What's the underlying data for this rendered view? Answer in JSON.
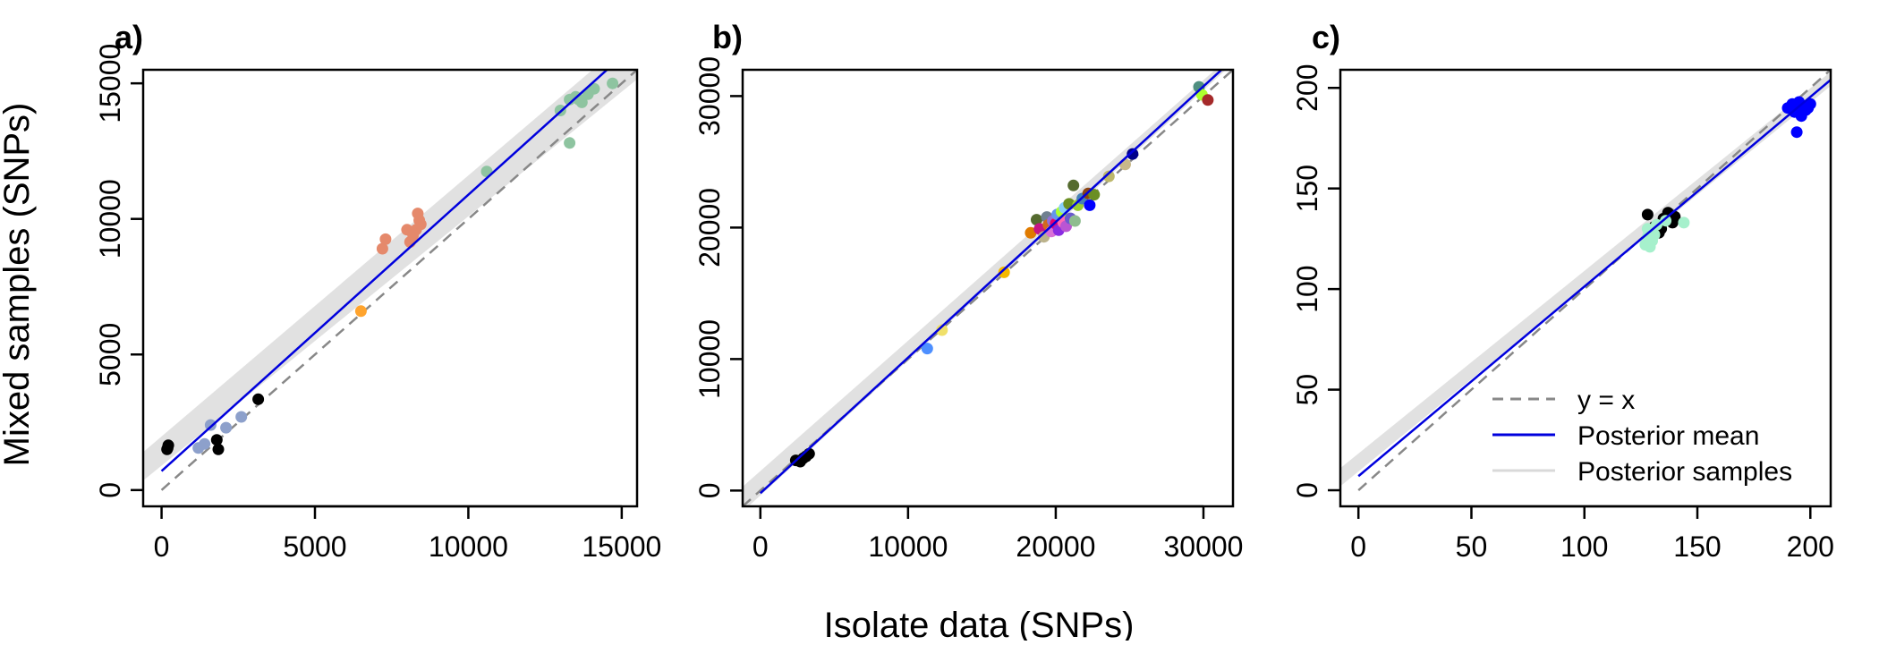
{
  "figure": {
    "ylabel": "Mixed samples (SNPs)",
    "xlabel": "Isolate data (SNPs)"
  },
  "legend": {
    "placement": "bottom-right of panel c",
    "entries": [
      {
        "label": "y = x",
        "style": "dashed",
        "color": "#888888"
      },
      {
        "label": "Posterior mean",
        "style": "solid",
        "color": "#0000dd"
      },
      {
        "label": "Posterior samples",
        "style": "solid",
        "color": "#d9d9d9"
      }
    ]
  },
  "chart_data": [
    {
      "type": "scatter",
      "panel": "a)",
      "xlim": [
        -600,
        15500
      ],
      "ylim": [
        -600,
        15500
      ],
      "xticks": [
        0,
        5000,
        10000,
        15000
      ],
      "yticks": [
        0,
        5000,
        10000,
        15000
      ],
      "grid": false,
      "identity_line": [
        [
          0,
          0
        ],
        [
          15500,
          15500
        ]
      ],
      "posterior_mean": [
        [
          0,
          700
        ],
        [
          15500,
          16500
        ]
      ],
      "posterior_band": {
        "at_min": [
          350,
          1400
        ],
        "at_max": [
          15150,
          16900
        ]
      },
      "points": [
        {
          "x": 200,
          "y": 1550,
          "c": "#000000"
        },
        {
          "x": 220,
          "y": 1650,
          "c": "#000000"
        },
        {
          "x": 180,
          "y": 1500,
          "c": "#000000"
        },
        {
          "x": 1800,
          "y": 1850,
          "c": "#000000"
        },
        {
          "x": 1850,
          "y": 1500,
          "c": "#000000"
        },
        {
          "x": 3150,
          "y": 3350,
          "c": "#000000"
        },
        {
          "x": 1200,
          "y": 1550,
          "c": "#8da0cb"
        },
        {
          "x": 1400,
          "y": 1700,
          "c": "#8da0cb"
        },
        {
          "x": 1600,
          "y": 2400,
          "c": "#8da0cb"
        },
        {
          "x": 2100,
          "y": 2300,
          "c": "#8da0cb"
        },
        {
          "x": 2600,
          "y": 2700,
          "c": "#8da0cb"
        },
        {
          "x": 6500,
          "y": 6600,
          "c": "#ffa42e"
        },
        {
          "x": 7200,
          "y": 8900,
          "c": "#e5896b"
        },
        {
          "x": 7300,
          "y": 9250,
          "c": "#e5896b"
        },
        {
          "x": 8000,
          "y": 9600,
          "c": "#e5896b"
        },
        {
          "x": 8100,
          "y": 9150,
          "c": "#e5896b"
        },
        {
          "x": 8300,
          "y": 9600,
          "c": "#e5896b"
        },
        {
          "x": 8350,
          "y": 10200,
          "c": "#e5896b"
        },
        {
          "x": 8400,
          "y": 9950,
          "c": "#e5896b"
        },
        {
          "x": 8450,
          "y": 9800,
          "c": "#e5896b"
        },
        {
          "x": 8200,
          "y": 9400,
          "c": "#e5896b"
        },
        {
          "x": 10600,
          "y": 11750,
          "c": "#8ec4a0"
        },
        {
          "x": 13000,
          "y": 14000,
          "c": "#8ec4a0"
        },
        {
          "x": 13300,
          "y": 14400,
          "c": "#8ec4a0"
        },
        {
          "x": 13300,
          "y": 12800,
          "c": "#8ec4a0"
        },
        {
          "x": 13500,
          "y": 14500,
          "c": "#8ec4a0"
        },
        {
          "x": 13700,
          "y": 14300,
          "c": "#8ec4a0"
        },
        {
          "x": 13900,
          "y": 14600,
          "c": "#8ec4a0"
        },
        {
          "x": 14100,
          "y": 14800,
          "c": "#8ec4a0"
        },
        {
          "x": 14700,
          "y": 15000,
          "c": "#8ec4a0"
        },
        {
          "x": 13600,
          "y": 14400,
          "c": "#8ec4a0"
        }
      ]
    },
    {
      "type": "scatter",
      "panel": "b)",
      "xlim": [
        -1200,
        32000
      ],
      "ylim": [
        -1200,
        32000
      ],
      "xticks": [
        0,
        10000,
        20000,
        30000
      ],
      "yticks": [
        0,
        10000,
        20000,
        30000
      ],
      "grid": false,
      "identity_line": [
        [
          -1200,
          -1200
        ],
        [
          32000,
          32000
        ]
      ],
      "posterior_mean": [
        [
          0,
          -200
        ],
        [
          32000,
          32800
        ]
      ],
      "posterior_band": {
        "at_min": [
          -1600,
          300
        ],
        "at_max": [
          32500,
          33200
        ]
      },
      "points": [
        {
          "x": 2400,
          "y": 2300,
          "c": "#000000"
        },
        {
          "x": 2700,
          "y": 2200,
          "c": "#000000"
        },
        {
          "x": 3100,
          "y": 2600,
          "c": "#000000"
        },
        {
          "x": 3300,
          "y": 2800,
          "c": "#000000"
        },
        {
          "x": 2900,
          "y": 2450,
          "c": "#000000"
        },
        {
          "x": 11300,
          "y": 10800,
          "c": "#4d8fff"
        },
        {
          "x": 12300,
          "y": 12200,
          "c": "#f0e06a"
        },
        {
          "x": 16500,
          "y": 16600,
          "c": "#f5b800"
        },
        {
          "x": 18300,
          "y": 19600,
          "c": "#e07b00"
        },
        {
          "x": 18700,
          "y": 20600,
          "c": "#556b2f"
        },
        {
          "x": 18900,
          "y": 19900,
          "c": "#c71585"
        },
        {
          "x": 19200,
          "y": 19300,
          "c": "#bcb38c"
        },
        {
          "x": 19400,
          "y": 20800,
          "c": "#708090"
        },
        {
          "x": 19500,
          "y": 20200,
          "c": "#d2691e"
        },
        {
          "x": 19700,
          "y": 19700,
          "c": "#da70d6"
        },
        {
          "x": 19800,
          "y": 20500,
          "c": "#9370db"
        },
        {
          "x": 20000,
          "y": 20300,
          "c": "#e60073"
        },
        {
          "x": 20100,
          "y": 21000,
          "c": "#6495ed"
        },
        {
          "x": 20200,
          "y": 19800,
          "c": "#8a2be2"
        },
        {
          "x": 20400,
          "y": 21200,
          "c": "#adff2f"
        },
        {
          "x": 20500,
          "y": 20400,
          "c": "#ff69b4"
        },
        {
          "x": 20600,
          "y": 21500,
          "c": "#87cefa"
        },
        {
          "x": 20700,
          "y": 20100,
          "c": "#ba55d3"
        },
        {
          "x": 20900,
          "y": 21800,
          "c": "#6b8e23"
        },
        {
          "x": 21000,
          "y": 20700,
          "c": "#6a5acd"
        },
        {
          "x": 21200,
          "y": 23200,
          "c": "#556b2f"
        },
        {
          "x": 21300,
          "y": 20500,
          "c": "#8fbc8f"
        },
        {
          "x": 21500,
          "y": 21700,
          "c": "#9acd32"
        },
        {
          "x": 21800,
          "y": 22200,
          "c": "#4682b4"
        },
        {
          "x": 22200,
          "y": 22600,
          "c": "#8b4513"
        },
        {
          "x": 22300,
          "y": 21700,
          "c": "#0000ff"
        },
        {
          "x": 22600,
          "y": 22500,
          "c": "#6b8e23"
        },
        {
          "x": 23600,
          "y": 23900,
          "c": "#bdb76b"
        },
        {
          "x": 24700,
          "y": 24800,
          "c": "#c8b88a"
        },
        {
          "x": 25200,
          "y": 25600,
          "c": "#00008b"
        },
        {
          "x": 29700,
          "y": 30700,
          "c": "#4f8f80"
        },
        {
          "x": 29900,
          "y": 30100,
          "c": "#adff2f"
        },
        {
          "x": 30300,
          "y": 29700,
          "c": "#a52a2a"
        }
      ]
    },
    {
      "type": "scatter",
      "panel": "c)",
      "xlim": [
        -8,
        209
      ],
      "ylim": [
        -8,
        209
      ],
      "xticks": [
        0,
        50,
        100,
        150,
        200
      ],
      "yticks": [
        0,
        50,
        100,
        150,
        200
      ],
      "grid": false,
      "identity_line": [
        [
          0,
          0
        ],
        [
          209,
          209
        ]
      ],
      "posterior_mean": [
        [
          0,
          7
        ],
        [
          209,
          204
        ]
      ],
      "posterior_band": {
        "at_min": [
          2,
          11
        ],
        "at_max": [
          201,
          208
        ]
      },
      "points": [
        {
          "x": 128,
          "y": 137,
          "c": "#000000"
        },
        {
          "x": 131,
          "y": 131,
          "c": "#000000"
        },
        {
          "x": 133,
          "y": 128,
          "c": "#000000"
        },
        {
          "x": 135,
          "y": 135,
          "c": "#000000"
        },
        {
          "x": 137,
          "y": 138,
          "c": "#000000"
        },
        {
          "x": 139,
          "y": 133,
          "c": "#000000"
        },
        {
          "x": 140,
          "y": 136,
          "c": "#000000"
        },
        {
          "x": 134,
          "y": 130,
          "c": "#000000"
        },
        {
          "x": 127,
          "y": 122,
          "c": "#a6f0cc"
        },
        {
          "x": 128,
          "y": 126,
          "c": "#a6f0cc"
        },
        {
          "x": 129,
          "y": 129,
          "c": "#a6f0cc"
        },
        {
          "x": 130,
          "y": 124,
          "c": "#a6f0cc"
        },
        {
          "x": 131,
          "y": 127,
          "c": "#a6f0cc"
        },
        {
          "x": 129,
          "y": 121,
          "c": "#a6f0cc"
        },
        {
          "x": 132,
          "y": 132,
          "c": "#a6f0cc"
        },
        {
          "x": 136,
          "y": 134,
          "c": "#a6f0cc"
        },
        {
          "x": 144,
          "y": 133,
          "c": "#a6f0cc"
        },
        {
          "x": 128,
          "y": 130,
          "c": "#a6f0cc"
        },
        {
          "x": 190,
          "y": 190,
          "c": "#0000ff"
        },
        {
          "x": 192,
          "y": 192,
          "c": "#0000ff"
        },
        {
          "x": 193,
          "y": 188,
          "c": "#0000ff"
        },
        {
          "x": 194,
          "y": 178,
          "c": "#0000ff"
        },
        {
          "x": 195,
          "y": 193,
          "c": "#0000ff"
        },
        {
          "x": 196,
          "y": 186,
          "c": "#0000ff"
        },
        {
          "x": 197,
          "y": 191,
          "c": "#0000ff"
        },
        {
          "x": 199,
          "y": 190,
          "c": "#0000ff"
        },
        {
          "x": 200,
          "y": 192,
          "c": "#0000ff"
        },
        {
          "x": 198,
          "y": 189,
          "c": "#0000ff"
        }
      ]
    }
  ]
}
